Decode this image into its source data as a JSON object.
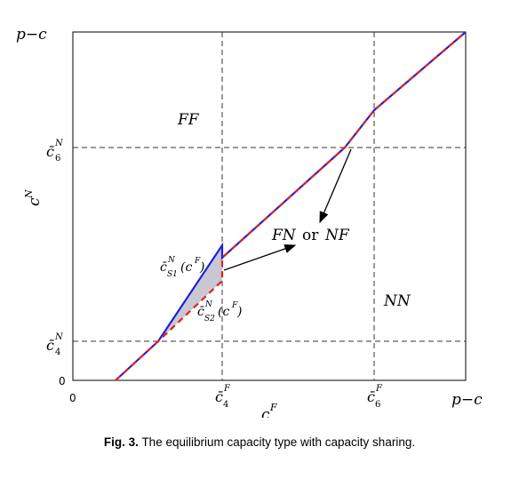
{
  "figure": {
    "y_axis_top_label": "p−c",
    "y_axis_zero": "0",
    "x_axis_zero": "0",
    "x_axis_right_label": "p−c",
    "y_axis_name": "c",
    "y_axis_name_sup": "N",
    "x_axis_name": "c",
    "x_axis_name_sup": "F",
    "ytick_c6_base": "c̄",
    "ytick_c6_sup": "N",
    "ytick_c6_sub": "6",
    "ytick_c4_base": "c̄",
    "ytick_c4_sup": "N",
    "ytick_c4_sub": "4",
    "xtick_c4_base": "c̄",
    "xtick_c4_sup": "F",
    "xtick_c4_sub": "4",
    "xtick_c6_base": "c̄",
    "xtick_c6_sup": "F",
    "xtick_c6_sub": "6",
    "region_ff": "FF",
    "region_nn": "NN",
    "region_fn_a": "FN",
    "region_fn_or": "or",
    "region_fn_b": "NF",
    "curve1_base": "c̄",
    "curve1_sup": "N",
    "curve1_sub": "S1",
    "curve1_arg": "(c",
    "curve1_arg_sup": "F",
    "curve1_close": ")",
    "curve2_base": "c̄",
    "curve2_sup": "N",
    "curve2_sub": "S2",
    "curve2_arg": "(c",
    "curve2_arg_sup": "F",
    "curve2_close": ")",
    "colors": {
      "upper_curve": "#1f1fe0",
      "lower_curve": "#e02020",
      "shaded": "#c8c8d4"
    }
  },
  "caption": {
    "label": "Fig. 3.",
    "text": "The equilibrium capacity type with capacity sharing."
  }
}
